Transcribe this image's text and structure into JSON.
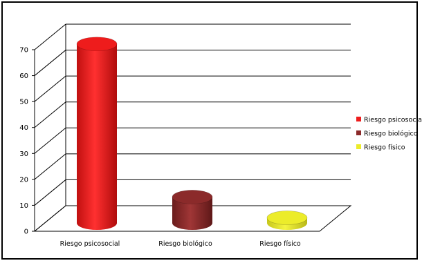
{
  "chart_data": {
    "type": "bar",
    "style": "3d-cylinder",
    "categories": [
      "Riesgo psicosocial",
      "Riesgo biológico",
      "Riesgo físico"
    ],
    "values": [
      69,
      10,
      2
    ],
    "colors": [
      "#ee1c1c",
      "#8b2a2a",
      "#ecec2a"
    ],
    "ylim": [
      0,
      70
    ],
    "yticks": [
      0,
      10,
      20,
      30,
      40,
      50,
      60,
      70
    ],
    "legend": {
      "position": "right",
      "entries": [
        "Riesgo psicosocial",
        "Riesgo biológico",
        "Riesgo físico"
      ]
    },
    "grid": true
  }
}
